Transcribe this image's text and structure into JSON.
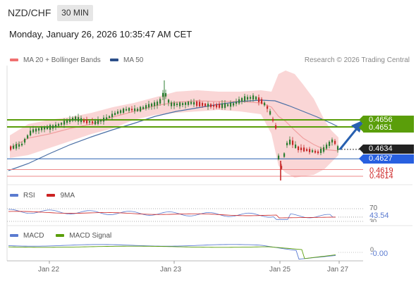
{
  "header": {
    "pair": "NZD/CHF",
    "timeframe": "30 MIN",
    "datetime": "Monday, January 26, 2026 10:35:47 AM CET"
  },
  "legend": {
    "ma20": "MA 20 + Bollinger Bands",
    "ma50": "MA 50",
    "copyright": "Research © 2026 Trading Central"
  },
  "colors": {
    "resistance": "#5a9e0a",
    "support": "#2860b0",
    "bollinger": "#f8c8c8",
    "ma20": "#f0a0a0",
    "ma50": "#4a6fa5",
    "candle_up": "#2e7d32",
    "candle_down": "#c62828",
    "rsi": "#5b7bd0",
    "rsi_ma": "#cc2222",
    "macd": "#5b7bd0",
    "macd_signal": "#5a9e0a",
    "arrow": "#2860b0"
  },
  "levels": {
    "res1": "0.4656",
    "res2": "0.4651",
    "last": "0.4634",
    "pivot": "0.4627",
    "sup1": "0.4619",
    "sup2": "0.4614"
  },
  "rsi_panel": {
    "label": "RSI",
    "ma_label": "9MA",
    "level_70": "70",
    "value": "43.54",
    "level_30": "30"
  },
  "macd_panel": {
    "label": "MACD",
    "signal_label": "MACD Signal",
    "zero": "0",
    "value": "-0.00"
  },
  "xaxis": {
    "ticks": [
      "Jan 22",
      "Jan 23",
      "Jan 25",
      "Jan 27"
    ]
  },
  "chart_data": {
    "type": "candlestick",
    "pair": "NZD/CHF",
    "interval": "30 MIN",
    "y_levels": {
      "resistance": [
        0.4656,
        0.4651
      ],
      "last": 0.4634,
      "pivot": 0.4627,
      "support": [
        0.4619,
        0.4614
      ]
    },
    "x_ticks": [
      "Jan 22",
      "Jan 23",
      "Jan 25",
      "Jan 27"
    ],
    "close_series_approx": [
      0.4634,
      0.4635,
      0.4637,
      0.464,
      0.4643,
      0.4645,
      0.4646,
      0.4646,
      0.4647,
      0.4648,
      0.4649,
      0.4649,
      0.4649,
      0.465,
      0.4651,
      0.4651,
      0.4652,
      0.4653,
      0.4654,
      0.4654,
      0.4653,
      0.4654,
      0.4655,
      0.4656,
      0.4656,
      0.4657,
      0.4657,
      0.4658,
      0.4658,
      0.4659,
      0.466,
      0.466,
      0.4661,
      0.4662,
      0.4662,
      0.4661,
      0.4661,
      0.4662,
      0.4662,
      0.4661,
      0.4661,
      0.4662,
      0.4663,
      0.4662,
      0.4662,
      0.4661,
      0.4661,
      0.466,
      0.4658,
      0.4655,
      0.4649,
      0.4645,
      0.464,
      0.4637,
      0.4635,
      0.4634,
      0.4633,
      0.4632,
      0.463,
      0.4629,
      0.463,
      0.4632,
      0.4633,
      0.4634
    ],
    "rsi": {
      "last": 43.54,
      "levels": [
        70,
        30
      ]
    },
    "macd": {
      "last": -0.0,
      "zero": 0
    }
  }
}
